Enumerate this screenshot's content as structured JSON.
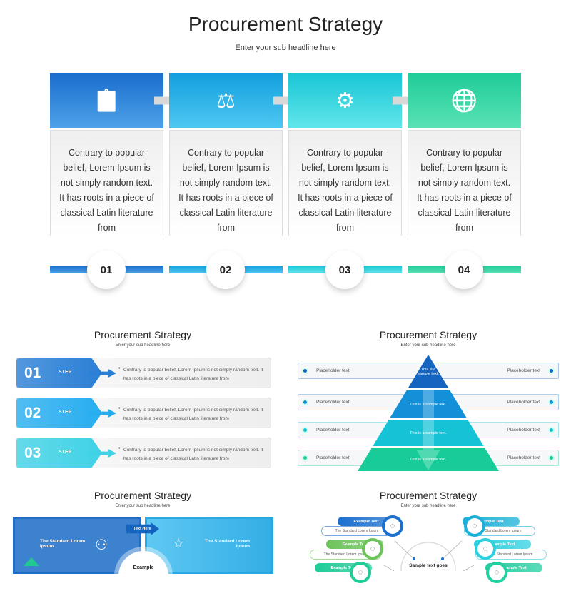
{
  "main": {
    "title": "Procurement Strategy",
    "subtitle": "Enter your sub headline here",
    "cards": [
      {
        "number": "01",
        "text": "Contrary to popular belief, Lorem Ipsum is not simply random text. It has roots in a piece of classical Latin literature from",
        "icon": "checklist-pen-icon",
        "color_from": "#1a6dcc",
        "color_to": "#4ea3ea"
      },
      {
        "number": "02",
        "text": "Contrary to popular belief, Lorem Ipsum is not simply random text. It has roots in a piece of classical Latin literature from",
        "icon": "balance-briefcase-heart-icon",
        "color_from": "#129fde",
        "color_to": "#4ec8f2"
      },
      {
        "number": "03",
        "text": "Contrary to popular belief, Lorem Ipsum is not simply random text. It has roots in a piece of classical Latin literature from",
        "icon": "growth-gear-icon",
        "color_from": "#18c6d6",
        "color_to": "#62e6ea"
      },
      {
        "number": "04",
        "text": "Contrary to popular belief, Lorem Ipsum is not simply random text. It has roots in a piece of classical Latin literature from",
        "icon": "globe-money-icon",
        "color_from": "#1fcc98",
        "color_to": "#5ae2b6"
      }
    ]
  },
  "thumb_steps": {
    "title": "Procurement Strategy",
    "subtitle": "Enter your sub headline here",
    "steps": [
      {
        "number": "01",
        "label": "STEP",
        "text": "Contrary to popular belief, Lorem Ipsum is not simply random text. It has roots in a piece of classical Latin literature from",
        "color": "#2a7fd6"
      },
      {
        "number": "02",
        "label": "STEP",
        "text": "Contrary to popular belief, Lorem Ipsum is not simply random text. It has roots in a piece of classical Latin literature from",
        "color": "#27aef0"
      },
      {
        "number": "03",
        "label": "STEP",
        "text": "Contrary to popular belief, Lorem Ipsum is not simply random text. It has roots in a piece of classical Latin literature from",
        "color": "#3fd2e6"
      }
    ]
  },
  "thumb_pyramid": {
    "title": "Procurement Strategy",
    "subtitle": "Enter your sub headline here",
    "rows": [
      {
        "left": "Placeholder text",
        "right": "Placeholder text",
        "center": "This is a sample text.",
        "color": "#1565c0"
      },
      {
        "left": "Placeholder text",
        "right": "Placeholder text",
        "center": "This is a sample text.",
        "color": "#1390d8"
      },
      {
        "left": "Placeholder text",
        "right": "Placeholder text",
        "center": "This is a sample text.",
        "color": "#16c3d6"
      },
      {
        "left": "Placeholder text",
        "right": "Placeholder text",
        "center": "This is a sample text.",
        "color": "#17cc98"
      }
    ]
  },
  "thumb_boxes": {
    "title": "Procurement Strategy",
    "subtitle": "Enter your sub headline here",
    "left_text": "The Standard Lorem Ipsum",
    "right_text": "The Standard Lorem Ipsum",
    "arrow_label": "Text Here",
    "center_label": "Example"
  },
  "thumb_radial": {
    "title": "Procurement Strategy",
    "subtitle": "Enter your sub headline here",
    "center_text": "Sample text goes",
    "items": [
      {
        "label": "Example Text",
        "desc": "The Standard Lorem Ipsum",
        "color": "#1a6fcf",
        "icon": "ear-icon"
      },
      {
        "label": "Example Text",
        "desc": "The Standard Lorem Ipsum",
        "color": "#6cc35a",
        "icon": "puzzle-icon"
      },
      {
        "label": "Example Text",
        "desc": "",
        "color": "#1fcc98",
        "icon": "brain-icon"
      },
      {
        "label": "Example Text",
        "desc": "The Standard Lorem Ipsum",
        "color": "#1ab0d8",
        "icon": "eye-swirl-icon"
      },
      {
        "label": "Example Text",
        "desc": "The Standard Lorem Ipsum",
        "color": "#2ed0e0",
        "icon": "lollipop-icon"
      },
      {
        "label": "Example Text",
        "desc": "",
        "color": "#22cfa0",
        "icon": "person-icon"
      }
    ]
  }
}
